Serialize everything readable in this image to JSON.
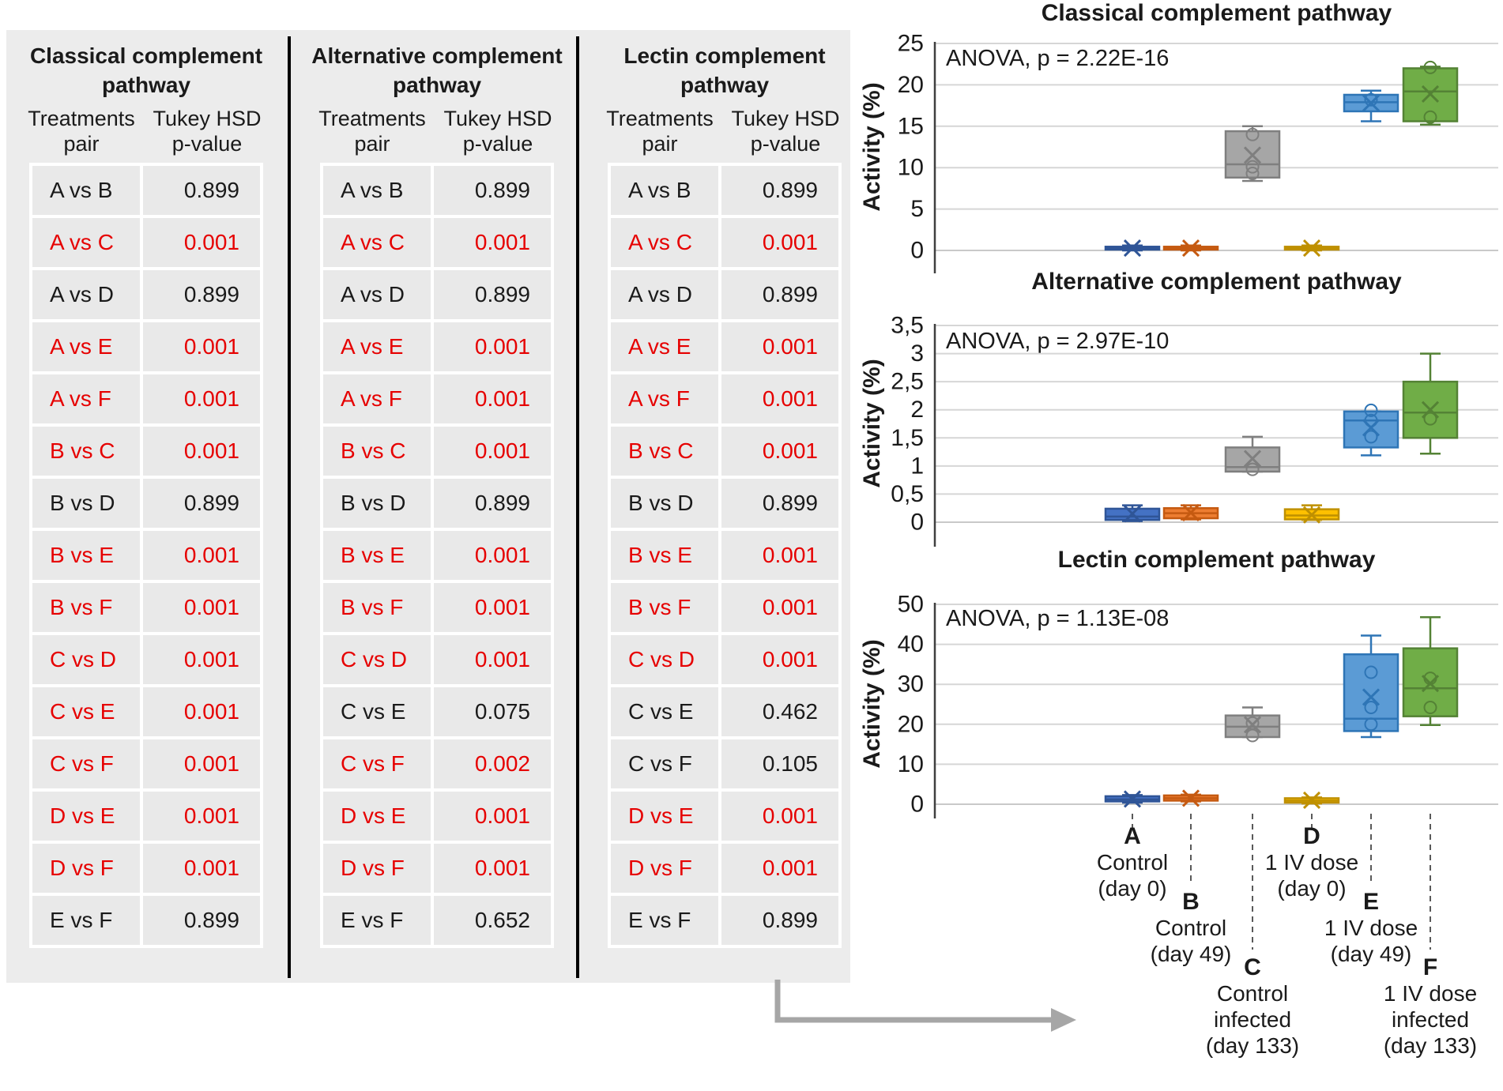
{
  "panel": {
    "tables": [
      {
        "title": "Classical complement pathway",
        "col1": "Treatments pair",
        "col2": "Tukey HSD p-value",
        "rows": [
          {
            "pair": "A vs B",
            "p": "0.899",
            "sig": false
          },
          {
            "pair": "A vs C",
            "p": "0.001",
            "sig": true
          },
          {
            "pair": "A vs D",
            "p": "0.899",
            "sig": false
          },
          {
            "pair": "A vs E",
            "p": "0.001",
            "sig": true
          },
          {
            "pair": "A vs F",
            "p": "0.001",
            "sig": true
          },
          {
            "pair": "B vs C",
            "p": "0.001",
            "sig": true
          },
          {
            "pair": "B vs D",
            "p": "0.899",
            "sig": false
          },
          {
            "pair": "B vs E",
            "p": "0.001",
            "sig": true
          },
          {
            "pair": "B vs F",
            "p": "0.001",
            "sig": true
          },
          {
            "pair": "C vs D",
            "p": "0.001",
            "sig": true
          },
          {
            "pair": "C vs E",
            "p": "0.001",
            "sig": true
          },
          {
            "pair": "C vs F",
            "p": "0.001",
            "sig": true
          },
          {
            "pair": "D vs E",
            "p": "0.001",
            "sig": true
          },
          {
            "pair": "D vs F",
            "p": "0.001",
            "sig": true
          },
          {
            "pair": "E vs F",
            "p": "0.899",
            "sig": false
          }
        ]
      },
      {
        "title": "Alternative complement pathway",
        "col1": "Treatments pair",
        "col2": "Tukey HSD p-value",
        "rows": [
          {
            "pair": "A vs B",
            "p": "0.899",
            "sig": false
          },
          {
            "pair": "A vs C",
            "p": "0.001",
            "sig": true
          },
          {
            "pair": "A vs D",
            "p": "0.899",
            "sig": false
          },
          {
            "pair": "A vs E",
            "p": "0.001",
            "sig": true
          },
          {
            "pair": "A vs F",
            "p": "0.001",
            "sig": true
          },
          {
            "pair": "B vs C",
            "p": "0.001",
            "sig": true
          },
          {
            "pair": "B vs D",
            "p": "0.899",
            "sig": false
          },
          {
            "pair": "B vs E",
            "p": "0.001",
            "sig": true
          },
          {
            "pair": "B vs F",
            "p": "0.001",
            "sig": true
          },
          {
            "pair": "C vs D",
            "p": "0.001",
            "sig": true
          },
          {
            "pair": "C vs E",
            "p": "0.075",
            "sig": false
          },
          {
            "pair": "C vs F",
            "p": "0.002",
            "sig": true
          },
          {
            "pair": "D vs E",
            "p": "0.001",
            "sig": true
          },
          {
            "pair": "D vs F",
            "p": "0.001",
            "sig": true
          },
          {
            "pair": "E vs F",
            "p": "0.652",
            "sig": false
          }
        ]
      },
      {
        "title": "Lectin complement pathway",
        "col1": "Treatments pair",
        "col2": "Tukey HSD p-value",
        "rows": [
          {
            "pair": "A vs B",
            "p": "0.899",
            "sig": false
          },
          {
            "pair": "A vs C",
            "p": "0.001",
            "sig": true
          },
          {
            "pair": "A vs D",
            "p": "0.899",
            "sig": false
          },
          {
            "pair": "A vs E",
            "p": "0.001",
            "sig": true
          },
          {
            "pair": "A vs F",
            "p": "0.001",
            "sig": true
          },
          {
            "pair": "B vs C",
            "p": "0.001",
            "sig": true
          },
          {
            "pair": "B vs D",
            "p": "0.899",
            "sig": false
          },
          {
            "pair": "B vs E",
            "p": "0.001",
            "sig": true
          },
          {
            "pair": "B vs F",
            "p": "0.001",
            "sig": true
          },
          {
            "pair": "C vs D",
            "p": "0.001",
            "sig": true
          },
          {
            "pair": "C vs E",
            "p": "0.462",
            "sig": false
          },
          {
            "pair": "C vs F",
            "p": "0.105",
            "sig": false
          },
          {
            "pair": "D vs E",
            "p": "0.001",
            "sig": true
          },
          {
            "pair": "D vs F",
            "p": "0.001",
            "sig": true
          },
          {
            "pair": "E vs F",
            "p": "0.899",
            "sig": false
          }
        ]
      }
    ]
  },
  "colors": {
    "significant": "#e60000",
    "text": "#1a1a1a",
    "panel_bg": "#ececec",
    "cell_bg": "#e9e9e9",
    "gridline": "#d6d6d6",
    "axis": "#3f3f3f",
    "dash": "#595959",
    "arrow": "#a6a6a6",
    "series": {
      "A": {
        "fill": "#4472c4",
        "stroke": "#2f5597"
      },
      "B": {
        "fill": "#ed7d31",
        "stroke": "#c55a11"
      },
      "C": {
        "fill": "#a6a6a6",
        "stroke": "#7f7f7f"
      },
      "D": {
        "fill": "#ffc000",
        "stroke": "#bf9000"
      },
      "E": {
        "fill": "#5b9bd5",
        "stroke": "#2e75b6"
      },
      "F": {
        "fill": "#70ad47",
        "stroke": "#548235"
      }
    }
  },
  "chart_data": [
    {
      "type": "boxplot",
      "title": "Classical complement pathway",
      "anova": "ANOVA, p = 2.22E-16",
      "ylabel": "Activity (%)",
      "ylim": [
        0,
        25
      ],
      "ytick_values": [
        0,
        5,
        10,
        15,
        20,
        25
      ],
      "ytick_labels": [
        "0",
        "5",
        "10",
        "15",
        "20",
        "25"
      ],
      "groups": [
        "A",
        "B",
        "C",
        "D",
        "E",
        "F"
      ],
      "series": [
        {
          "group": "A",
          "q1": 0.1,
          "q3": 0.45,
          "median": 0.25,
          "mean": 0.28,
          "whisker_low": 0.0,
          "whisker_high": 0.6,
          "outliers": []
        },
        {
          "group": "B",
          "q1": 0.1,
          "q3": 0.45,
          "median": 0.25,
          "mean": 0.28,
          "whisker_low": 0.0,
          "whisker_high": 0.6,
          "outliers": []
        },
        {
          "group": "C",
          "q1": 8.8,
          "q3": 14.4,
          "median": 10.4,
          "mean": 11.5,
          "whisker_low": 8.4,
          "whisker_high": 15.0,
          "outliers": [
            14.0,
            10.1,
            9.3
          ]
        },
        {
          "group": "D",
          "q1": 0.1,
          "q3": 0.45,
          "median": 0.25,
          "mean": 0.28,
          "whisker_low": 0.0,
          "whisker_high": 0.6,
          "outliers": []
        },
        {
          "group": "E",
          "q1": 16.8,
          "q3": 18.8,
          "median": 17.9,
          "mean": 17.8,
          "whisker_low": 15.6,
          "whisker_high": 19.3,
          "outliers": [
            18.2
          ]
        },
        {
          "group": "F",
          "q1": 15.6,
          "q3": 22.0,
          "median": 19.2,
          "mean": 18.9,
          "whisker_low": 15.2,
          "whisker_high": 22.2,
          "outliers": [
            22.1,
            16.1
          ]
        }
      ]
    },
    {
      "type": "boxplot",
      "title": "Alternative complement pathway",
      "anova": "ANOVA, p = 2.97E-10",
      "ylabel": "Activity (%)",
      "ylim": [
        0,
        3.5
      ],
      "ytick_values": [
        0,
        0.5,
        1,
        1.5,
        2,
        2.5,
        3,
        3.5
      ],
      "ytick_labels": [
        "0",
        "0,5",
        "1",
        "1,5",
        "2",
        "2,5",
        "3",
        "3,5"
      ],
      "groups": [
        "A",
        "B",
        "C",
        "D",
        "E",
        "F"
      ],
      "series": [
        {
          "group": "A",
          "q1": 0.04,
          "q3": 0.24,
          "median": 0.1,
          "mean": 0.15,
          "whisker_low": 0.02,
          "whisker_high": 0.3,
          "outliers": []
        },
        {
          "group": "B",
          "q1": 0.07,
          "q3": 0.25,
          "median": 0.16,
          "mean": 0.17,
          "whisker_low": 0.05,
          "whisker_high": 0.3,
          "outliers": []
        },
        {
          "group": "C",
          "q1": 0.9,
          "q3": 1.33,
          "median": 0.98,
          "mean": 1.13,
          "whisker_low": 0.9,
          "whisker_high": 1.52,
          "outliers": [
            0.94
          ]
        },
        {
          "group": "D",
          "q1": 0.05,
          "q3": 0.23,
          "median": 0.12,
          "mean": 0.13,
          "whisker_low": 0.04,
          "whisker_high": 0.3,
          "outliers": []
        },
        {
          "group": "E",
          "q1": 1.33,
          "q3": 1.97,
          "median": 1.81,
          "mean": 1.68,
          "whisker_low": 1.19,
          "whisker_high": 1.97,
          "outliers": [
            1.99,
            1.81,
            1.52
          ]
        },
        {
          "group": "F",
          "q1": 1.5,
          "q3": 2.5,
          "median": 1.95,
          "mean": 2.0,
          "whisker_low": 1.22,
          "whisker_high": 3.0,
          "outliers": [
            1.84
          ]
        }
      ]
    },
    {
      "type": "boxplot",
      "title": "Lectin complement pathway",
      "anova": "ANOVA, p = 1.13E-08",
      "ylabel": "Activity (%)",
      "ylim": [
        0,
        50
      ],
      "ytick_values": [
        0,
        10,
        20,
        30,
        40,
        50
      ],
      "ytick_labels": [
        "0",
        "10",
        "20",
        "30",
        "40",
        "50"
      ],
      "groups": [
        "A",
        "B",
        "C",
        "D",
        "E",
        "F"
      ],
      "series": [
        {
          "group": "A",
          "q1": 0.7,
          "q3": 2.0,
          "median": 1.2,
          "mean": 1.3,
          "whisker_low": 0.4,
          "whisker_high": 2.3,
          "outliers": []
        },
        {
          "group": "B",
          "q1": 0.9,
          "q3": 2.2,
          "median": 1.5,
          "mean": 1.5,
          "whisker_low": 0.7,
          "whisker_high": 2.4,
          "outliers": []
        },
        {
          "group": "C",
          "q1": 16.8,
          "q3": 22.2,
          "median": 19.4,
          "mean": 19.9,
          "whisker_low": 16.8,
          "whisker_high": 24.2,
          "outliers": [
            20.3,
            17.2
          ]
        },
        {
          "group": "D",
          "q1": 0.4,
          "q3": 1.5,
          "median": 0.9,
          "mean": 1.0,
          "whisker_low": 0.2,
          "whisker_high": 1.7,
          "outliers": []
        },
        {
          "group": "E",
          "q1": 18.3,
          "q3": 37.5,
          "median": 21.4,
          "mean": 26.8,
          "whisker_low": 16.8,
          "whisker_high": 42.2,
          "outliers": [
            33.0,
            24.2,
            20.0
          ]
        },
        {
          "group": "F",
          "q1": 22.0,
          "q3": 39.0,
          "median": 29.0,
          "mean": 30.2,
          "whisker_low": 19.8,
          "whisker_high": 46.8,
          "outliers": [
            31.5,
            24.2
          ]
        }
      ]
    }
  ],
  "x_axis_labels": [
    {
      "letter": "A",
      "lines": [
        "Control",
        "(day 0)"
      ],
      "tier": 0
    },
    {
      "letter": "B",
      "lines": [
        "Control",
        "(day 49)"
      ],
      "tier": 1
    },
    {
      "letter": "C",
      "lines": [
        "Control",
        "infected",
        "(day 133)"
      ],
      "tier": 2
    },
    {
      "letter": "D",
      "lines": [
        "1 IV dose",
        "(day 0)"
      ],
      "tier": 0
    },
    {
      "letter": "E",
      "lines": [
        "1 IV dose",
        "(day 49)"
      ],
      "tier": 1
    },
    {
      "letter": "F",
      "lines": [
        "1 IV dose",
        "infected",
        "(day 133)"
      ],
      "tier": 2
    }
  ]
}
